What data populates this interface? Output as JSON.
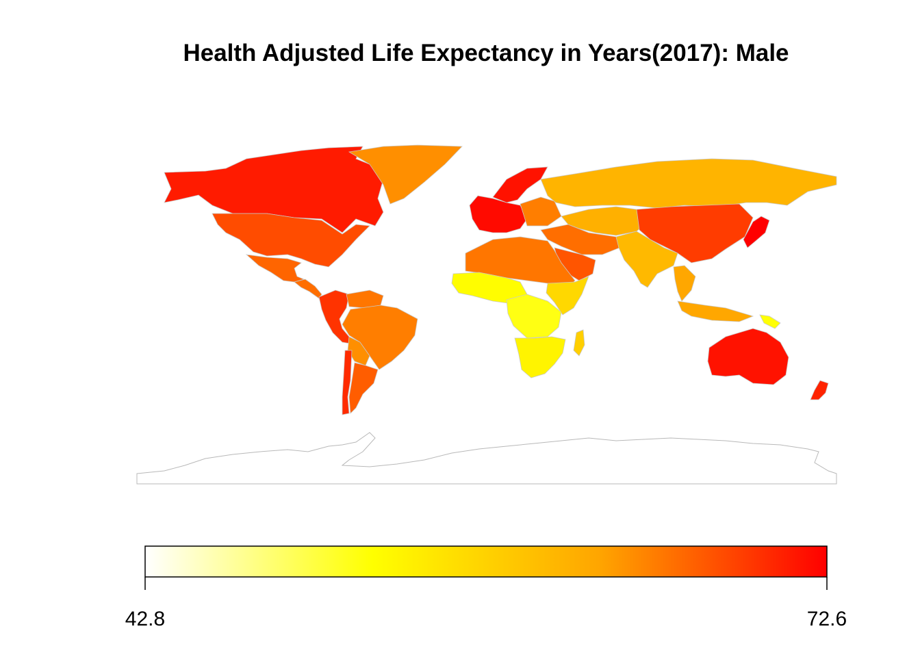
{
  "title": "Health Adjusted Life Expectancy in Years(2017): Male",
  "legend": {
    "min": 42.8,
    "max": 72.6,
    "min_label": "42.8",
    "max_label": "72.6",
    "palette": [
      "#FFFFFF",
      "#FFFF00",
      "#FFA500",
      "#FF0000"
    ]
  },
  "chart_data": {
    "type": "heatmap",
    "subtype": "choropleth world map",
    "title": "Health Adjusted Life Expectancy in Years(2017): Male",
    "scale_range": [
      42.8,
      72.6
    ],
    "regions": [
      {
        "name": "Canada",
        "value": 71.0
      },
      {
        "name": "Greenland",
        "value": 64.0
      },
      {
        "name": "United States",
        "value": 68.0
      },
      {
        "name": "Mexico",
        "value": 66.5
      },
      {
        "name": "Central America",
        "value": 66.0
      },
      {
        "name": "Colombia / Ecuador / Peru",
        "value": 69.5
      },
      {
        "name": "Venezuela",
        "value": 65.5
      },
      {
        "name": "Brazil",
        "value": 65.0
      },
      {
        "name": "Bolivia / Paraguay",
        "value": 64.0
      },
      {
        "name": "Argentina",
        "value": 67.0
      },
      {
        "name": "Chile",
        "value": 70.0
      },
      {
        "name": "Western Europe",
        "value": 72.0
      },
      {
        "name": "Scandinavia",
        "value": 71.5
      },
      {
        "name": "Eastern Europe",
        "value": 65.0
      },
      {
        "name": "Russia",
        "value": 61.0
      },
      {
        "name": "Central Asia",
        "value": 61.5
      },
      {
        "name": "Middle East",
        "value": 66.0
      },
      {
        "name": "Saudi Arabia",
        "value": 67.5
      },
      {
        "name": "India",
        "value": 60.5
      },
      {
        "name": "China",
        "value": 69.0
      },
      {
        "name": "Japan",
        "value": 72.6
      },
      {
        "name": "Southeast Asia",
        "value": 62.5
      },
      {
        "name": "North Africa",
        "value": 65.5
      },
      {
        "name": "West Africa",
        "value": 53.0
      },
      {
        "name": "Central Africa",
        "value": 52.0
      },
      {
        "name": "East Africa",
        "value": 57.0
      },
      {
        "name": "Southern Africa",
        "value": 54.0
      },
      {
        "name": "Madagascar",
        "value": 58.0
      },
      {
        "name": "Australia",
        "value": 71.5
      },
      {
        "name": "New Zealand",
        "value": 70.5
      },
      {
        "name": "Papua New Guinea",
        "value": 52.5
      }
    ]
  }
}
